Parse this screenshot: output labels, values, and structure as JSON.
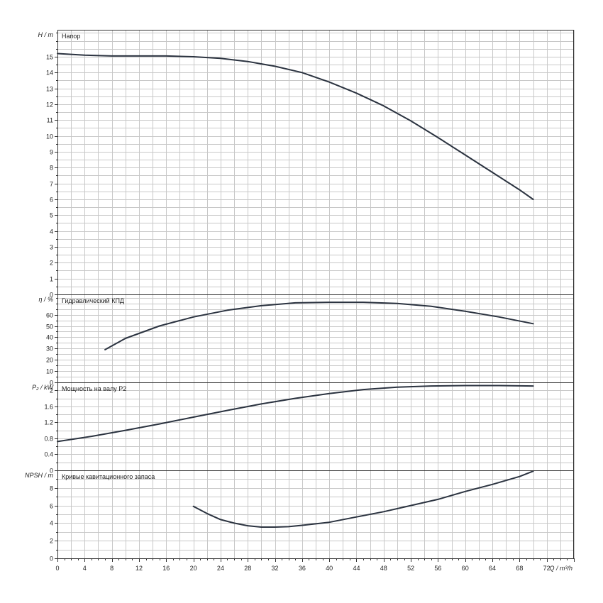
{
  "chart_data": {
    "type": "line",
    "x_axis": {
      "label": "Q / m³/h",
      "min": 0,
      "max": 76,
      "tick_labels": [
        "0",
        "4",
        "8",
        "12",
        "16",
        "20",
        "24",
        "28",
        "32",
        "36",
        "40",
        "44",
        "48",
        "52",
        "56",
        "60",
        "64",
        "68",
        "72"
      ]
    },
    "panels": [
      {
        "id": "head",
        "title": "Напор",
        "ylabel": "H / m",
        "ylim": [
          0,
          16.7
        ],
        "yticks": [
          0,
          1,
          2,
          3,
          4,
          5,
          6,
          7,
          8,
          9,
          10,
          11,
          12,
          13,
          14,
          15
        ],
        "ytick_labels": [
          "0",
          "1",
          "2",
          "3",
          "4",
          "5",
          "6",
          "7",
          "8",
          "9",
          "10",
          "11",
          "12",
          "13",
          "14",
          "15"
        ],
        "series": [
          {
            "x": [
              0,
              4,
              8,
              12,
              16,
              20,
              24,
              28,
              32,
              36,
              40,
              44,
              48,
              52,
              56,
              60,
              64,
              68,
              70
            ],
            "y": [
              15.2,
              15.1,
              15.05,
              15.05,
              15.05,
              15.0,
              14.9,
              14.7,
              14.4,
              14.0,
              13.4,
              12.7,
              11.9,
              10.95,
              9.9,
              8.8,
              7.7,
              6.6,
              6.0
            ]
          }
        ]
      },
      {
        "id": "efficiency",
        "title": "Гидравлический КПД",
        "ylabel": "η / %",
        "ylim": [
          0,
          78
        ],
        "yticks": [
          0,
          10,
          20,
          30,
          40,
          50,
          60
        ],
        "ytick_labels": [
          "0",
          "10",
          "20",
          "30",
          "40",
          "50",
          "60"
        ],
        "series": [
          {
            "x": [
              7,
              10,
              15,
              20,
              25,
              30,
              35,
              40,
              45,
              50,
              55,
              60,
              65,
              70
            ],
            "y": [
              29,
              39,
              50,
              58,
              64,
              68,
              70.5,
              71,
              71,
              70,
              67.5,
              63,
              58,
              52
            ]
          }
        ]
      },
      {
        "id": "power",
        "title": "Мощность на валу P2",
        "ylabel": "P₂ / kW",
        "ylim": [
          0,
          2.2
        ],
        "yticks": [
          0,
          0.4,
          0.8,
          1.2,
          1.6,
          2
        ],
        "ytick_labels": [
          "0",
          "0.4",
          "0.8",
          "1.2",
          "1.6",
          "2"
        ],
        "series": [
          {
            "x": [
              0,
              5,
              10,
              15,
              20,
              25,
              30,
              35,
              40,
              45,
              50,
              55,
              60,
              65,
              70
            ],
            "y": [
              0.72,
              0.85,
              1.0,
              1.16,
              1.33,
              1.5,
              1.66,
              1.8,
              1.92,
              2.02,
              2.08,
              2.11,
              2.12,
              2.12,
              2.11
            ]
          }
        ]
      },
      {
        "id": "npsh",
        "title": "Кривые кавитационного запаса",
        "ylabel": "NPSH / m",
        "ylim": [
          0,
          10
        ],
        "yticks": [
          0,
          2,
          4,
          6,
          8
        ],
        "ytick_labels": [
          "0",
          "2",
          "4",
          "6",
          "8"
        ],
        "series": [
          {
            "x": [
              20,
              22,
              24,
              26,
              28,
              30,
              32,
              34,
              36,
              40,
              44,
              48,
              52,
              56,
              60,
              64,
              68,
              70
            ],
            "y": [
              5.9,
              5.1,
              4.4,
              4.0,
              3.7,
              3.55,
              3.55,
              3.6,
              3.75,
              4.1,
              4.7,
              5.3,
              6.0,
              6.7,
              7.6,
              8.4,
              9.3,
              9.9
            ]
          }
        ]
      }
    ]
  }
}
